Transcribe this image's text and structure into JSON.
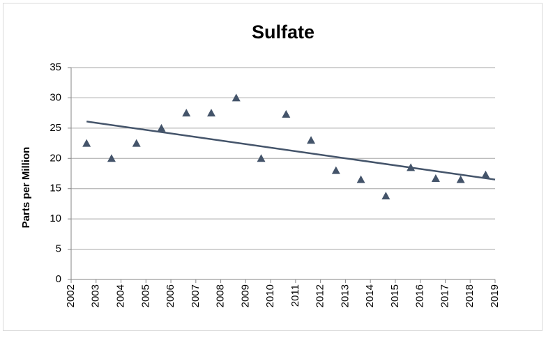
{
  "chart_data": {
    "type": "scatter",
    "title": "Sulfate",
    "y_label": "Parts per Million",
    "x": [
      2002.62,
      2003.62,
      2004.62,
      2005.62,
      2006.62,
      2007.62,
      2008.62,
      2009.62,
      2010.62,
      2011.62,
      2012.62,
      2013.62,
      2014.62,
      2015.62,
      2016.62,
      2017.62,
      2018.62
    ],
    "values": [
      22.5,
      20,
      22.5,
      25,
      27.5,
      27.5,
      30,
      20,
      27.3,
      23,
      18,
      16.5,
      13.8,
      18.5,
      16.7,
      16.5,
      17.3
    ],
    "color": "#44546a",
    "trendline": {
      "color": "#44546a",
      "x": [
        2002.62,
        2019
      ],
      "values": [
        26.1,
        16.5
      ]
    },
    "xlim": [
      2002,
      2019
    ],
    "xticks": [
      2002,
      2003,
      2004,
      2005,
      2006,
      2007,
      2008,
      2009,
      2010,
      2011,
      2012,
      2013,
      2014,
      2015,
      2016,
      2017,
      2018,
      2019
    ],
    "ylim": [
      0,
      35
    ],
    "yticks": [
      0,
      5,
      10,
      15,
      20,
      25,
      30,
      35
    ],
    "grid": true
  }
}
